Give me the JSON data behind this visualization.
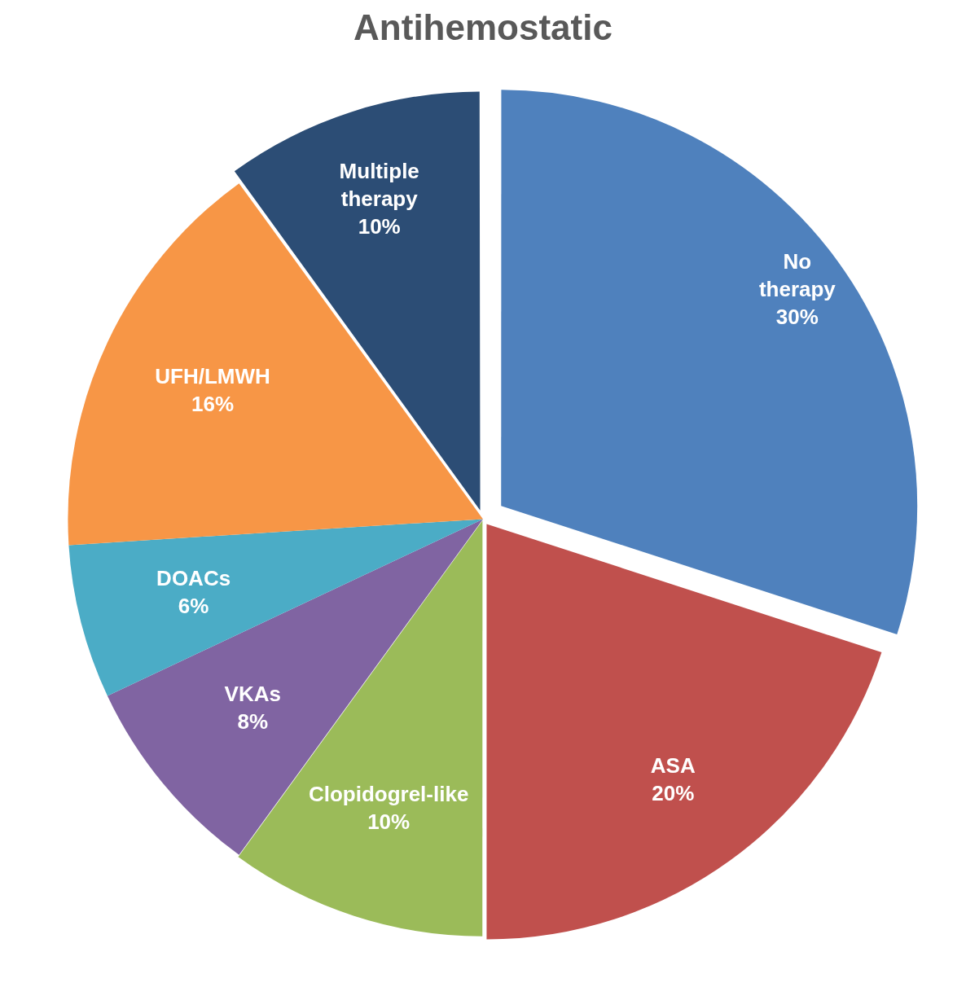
{
  "chart_data": {
    "type": "pie",
    "title": "Antihemostatic",
    "categories": [
      "No therapy",
      "ASA",
      "Clopidogrel-like",
      "VKAs",
      "DOACs",
      "UFH/LMWH",
      "Multiple therapy"
    ],
    "values": [
      30,
      20,
      10,
      8,
      6,
      16,
      10
    ],
    "value_labels": [
      "30%",
      "20%",
      "10%",
      "8%",
      "6%",
      "16%",
      "10%"
    ],
    "colors": [
      "#4f81bd",
      "#c0504d",
      "#9bbb59",
      "#8064a2",
      "#4bacc6",
      "#f79646",
      "#2c4d75"
    ],
    "legend": false
  }
}
